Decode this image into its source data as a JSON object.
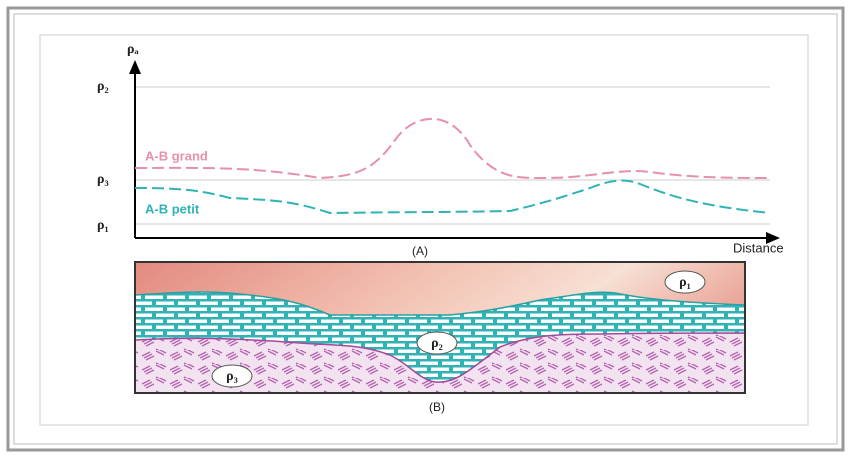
{
  "panel_a": {
    "y_axis_label": "ρₐ",
    "levels": [
      "ρ₂",
      "ρ₃",
      "ρ₁"
    ],
    "curves": [
      "A-B grand",
      "A-B petit"
    ],
    "x_axis_label": "Distance",
    "caption": "(A)"
  },
  "panel_b": {
    "layers": [
      "ρ₁",
      "ρ₂",
      "ρ₃"
    ],
    "caption": "(B)"
  }
}
